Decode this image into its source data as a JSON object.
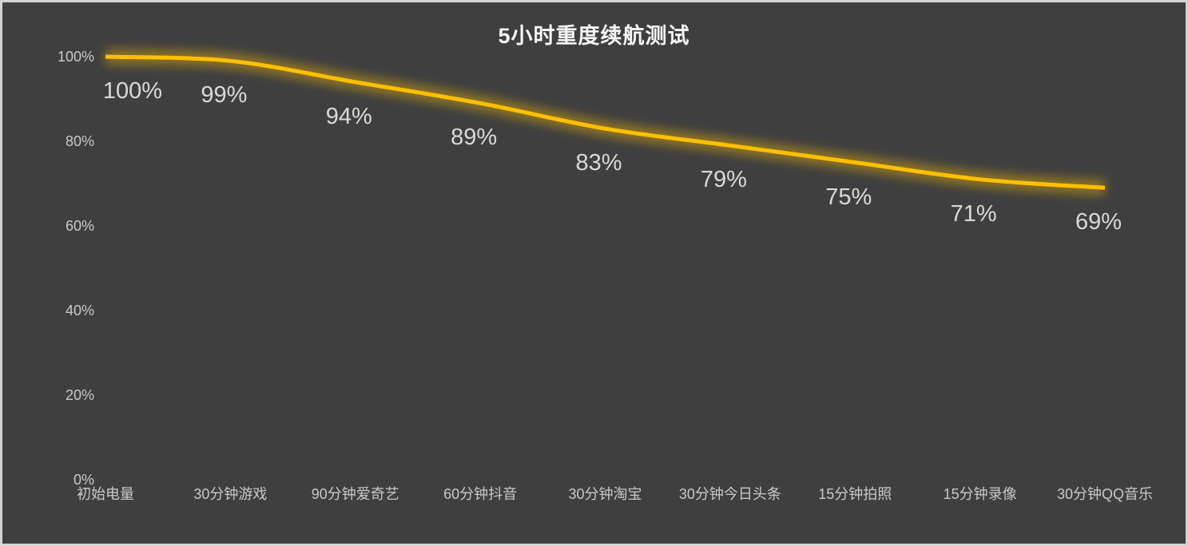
{
  "window": {
    "background_color": "#3f3f3f",
    "border_color": "#d4d4d4"
  },
  "chart_data": {
    "type": "line",
    "title": "5小时重度续航测试",
    "categories": [
      "初始电量",
      "30分钟游戏",
      "90分钟爱奇艺",
      "60分钟抖音",
      "30分钟淘宝",
      "30分钟今日头条",
      "15分钟拍照",
      "15分钟录像",
      "30分钟QQ音乐"
    ],
    "values": [
      100,
      99,
      94,
      89,
      83,
      79,
      75,
      71,
      69
    ],
    "data_label_suffix": "%",
    "yticks": [
      0,
      20,
      40,
      60,
      80,
      100
    ],
    "ytick_suffix": "%",
    "ylim": [
      0,
      100
    ],
    "xlabel": "",
    "ylabel": "",
    "grid": false,
    "legend": "none",
    "smoothed": true,
    "line_color": "#ffc000",
    "glow_color": "#ffc000",
    "data_label_color": "#d9d9d9",
    "axis_label_color": "#c9c9c9",
    "title_color": "#f5f5f5"
  }
}
